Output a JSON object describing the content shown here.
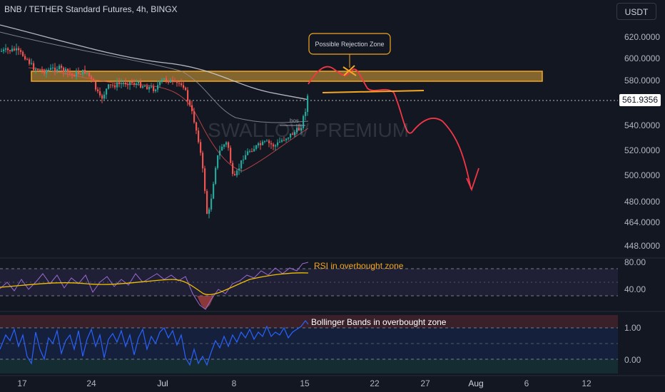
{
  "header": {
    "title": "BNB / TETHER Standard Futures, 4h, BINGX",
    "currency_button": "USDT"
  },
  "colors": {
    "background": "#131722",
    "up_candle": "#26a69a",
    "down_candle": "#ef5350",
    "zone_fill": "#e0a53a",
    "annotation_orange": "#f5a623",
    "projection_red": "#f23645",
    "rsi_line": "#9c6ad1",
    "rsi_ma": "#f0c000",
    "bb_line": "#2962ff"
  },
  "watermark": "SWALLOW PREMIUM",
  "main_chart": {
    "last_price": "561.9356",
    "price_ticks": [
      "620.0000",
      "600.0000",
      "580.0000",
      "540.0000",
      "520.0000",
      "500.0000",
      "480.0000",
      "464.0000",
      "448.0000"
    ],
    "rejection_zone_label": "Possible Rejection Zone",
    "bos_label": "bos"
  },
  "rsi_panel": {
    "label": "RSI in overbought zone",
    "ticks": [
      "80.00",
      "40.00"
    ]
  },
  "bb_panel": {
    "label": "Bollinger Bands in overbought zone",
    "ticks": [
      "1.00",
      "0.00"
    ]
  },
  "x_axis": {
    "ticks": [
      "17",
      "24",
      "Jul",
      "8",
      "15",
      "22",
      "27",
      "Aug",
      "6",
      "12"
    ]
  },
  "chart_data": {
    "type": "candlestick",
    "title": "BNB / TETHER Standard Futures, 4h, BINGX",
    "y_range": [
      440,
      630
    ],
    "resistance_zone": [
      578,
      586
    ],
    "projection_path": [
      {
        "date": "Jul 16",
        "price": 578
      },
      {
        "date": "Jul 19",
        "price": 585
      },
      {
        "date": "Jul 21",
        "price": 576
      },
      {
        "date": "Jul 24",
        "price": 572
      },
      {
        "date": "Jul 27",
        "price": 545
      },
      {
        "date": "Jul 29",
        "price": 550
      },
      {
        "date": "Aug 1",
        "price": 495
      }
    ],
    "rsi_levels": [
      80,
      40
    ],
    "bb_levels": [
      1.0,
      0.0
    ]
  }
}
